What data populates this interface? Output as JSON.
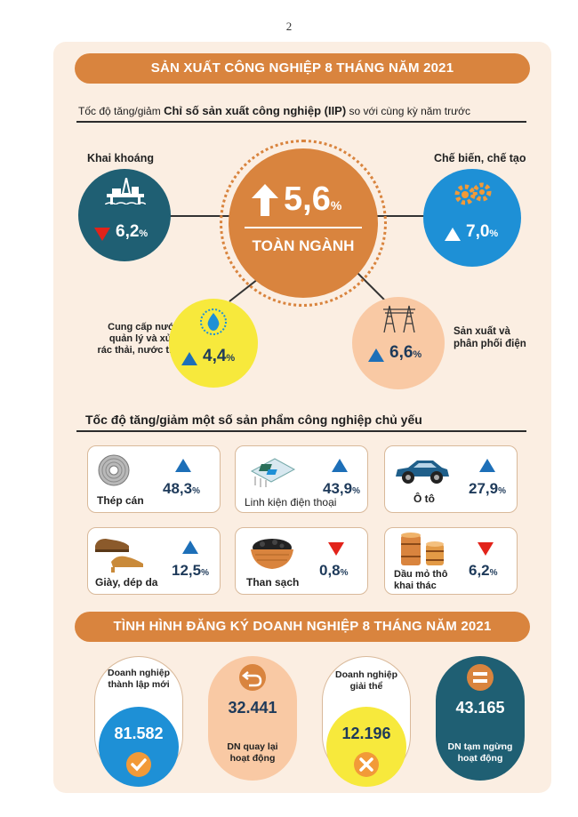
{
  "page_number": "2",
  "industry": {
    "banner": "SẢN XUẤT CÔNG NGHIỆP 8 THÁNG NĂM 2021",
    "subtitle_prefix": "Tốc độ tăng/giảm ",
    "subtitle_bold": "Chỉ số sản xuất công nghiệp (IIP)",
    "subtitle_suffix": " so với cùng kỳ năm trước",
    "center": {
      "value": "5,6",
      "unit": "%",
      "label": "TOÀN NGÀNH",
      "direction": "up"
    },
    "sectors": [
      {
        "label": "Khai khoáng",
        "value": "6,2",
        "unit": "%",
        "direction": "down",
        "icon": "oil-rig-icon"
      },
      {
        "label": "Chế biến, chế tạo",
        "value": "7,0",
        "unit": "%",
        "direction": "up",
        "icon": "gears-icon"
      },
      {
        "label_lines": [
          "Cung cấp nước,",
          "quản lý và xử lý",
          "rác thải, nước thải"
        ],
        "value": "4,4",
        "unit": "%",
        "direction": "up",
        "icon": "water-drop-icon"
      },
      {
        "label_lines": [
          "Sản xuất và",
          "phân phối điện"
        ],
        "value": "6,6",
        "unit": "%",
        "direction": "up",
        "icon": "power-tower-icon"
      }
    ]
  },
  "products": {
    "title": "Tốc độ tăng/giảm một số sản phẩm công nghiệp chủ yếu",
    "items": [
      {
        "name": "Thép cán",
        "value": "48,3",
        "unit": "%",
        "direction": "up",
        "icon": "steel-coil-icon"
      },
      {
        "name": "Linh kiện điện thoại",
        "value": "43,9",
        "unit": "%",
        "direction": "up",
        "icon": "circuit-board-icon"
      },
      {
        "name": "Ô tô",
        "value": "27,9",
        "unit": "%",
        "direction": "up",
        "icon": "car-icon"
      },
      {
        "name": "Giày, dép da",
        "value": "12,5",
        "unit": "%",
        "direction": "up",
        "icon": "shoes-icon"
      },
      {
        "name": "Than sạch",
        "value": "0,8",
        "unit": "%",
        "direction": "down",
        "icon": "coal-bowl-icon"
      },
      {
        "name_lines": [
          "Dầu mỏ thô",
          "khai thác"
        ],
        "value": "6,2",
        "unit": "%",
        "direction": "down",
        "icon": "oil-barrels-icon"
      }
    ]
  },
  "enterprise": {
    "banner": "TÌNH HÌNH ĐĂNG KÝ DOANH NGHIỆP 8 THÁNG NĂM 2021",
    "items": [
      {
        "label_lines": [
          "Doanh nghiệp",
          "thành lập mới"
        ],
        "value": "81.582",
        "icon": "check-icon"
      },
      {
        "label_lines": [
          "DN quay lại",
          "hoạt động"
        ],
        "value": "32.441",
        "icon": "return-arrow-icon"
      },
      {
        "label_lines": [
          "Doanh nghiệp",
          "giải thể"
        ],
        "value": "12.196",
        "icon": "x-mark-icon"
      },
      {
        "label_lines": [
          "DN tạm ngừng",
          "hoạt động"
        ],
        "value": "43.165",
        "icon": "equals-icon"
      }
    ]
  },
  "colors": {
    "orange": "#d9843e",
    "teal": "#1f5f73",
    "blue": "#1e90d6",
    "yellow": "#f7e93c",
    "peach": "#f9c9a4",
    "up": "#1d6fb8",
    "down": "#e2231a"
  }
}
